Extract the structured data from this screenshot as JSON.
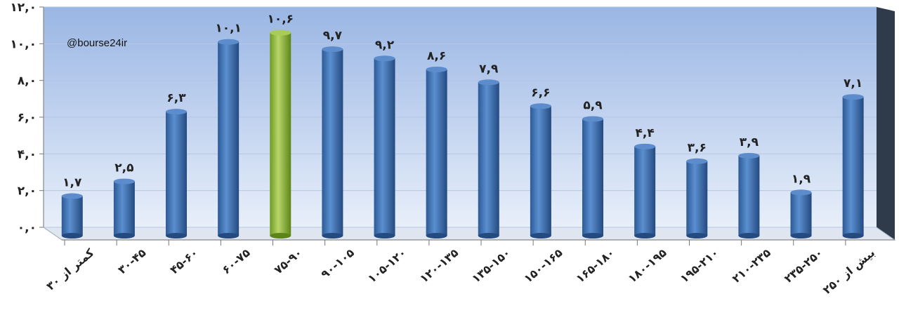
{
  "watermark": "@bourse24ir",
  "chart_data": {
    "type": "bar",
    "categories": [
      "کمتر از ۳۰",
      "۳۰-۴۵",
      "۴۵-۶۰",
      "۶۰-۷۵",
      "۷۵-۹۰",
      "۹۰-۱۰۵",
      "۱۰۵-۱۲۰",
      "۱۲۰-۱۳۵",
      "۱۳۵-۱۵۰",
      "۱۵۰-۱۶۵",
      "۱۶۵-۱۸۰",
      "۱۸۰-۱۹۵",
      "۱۹۵-۲۱۰",
      "۲۱۰-۲۳۵",
      "۲۳۵-۲۵۰",
      "بیش از ۲۵۰"
    ],
    "values": [
      1.7,
      2.5,
      6.3,
      10.1,
      10.6,
      9.7,
      9.2,
      8.6,
      7.9,
      6.6,
      5.9,
      4.4,
      3.6,
      3.9,
      1.9,
      7.1
    ],
    "data_labels": [
      "۱,۷",
      "۲,۵",
      "۶,۳",
      "۱۰,۱",
      "۱۰,۶",
      "۹,۷",
      "۹,۲",
      "۸,۶",
      "۷,۹",
      "۶,۶",
      "۵,۹",
      "۴,۴",
      "۳,۶",
      "۳,۹",
      "۱,۹",
      "۷,۱"
    ],
    "highlight_index": 4,
    "ylim": [
      0,
      12
    ],
    "yticks": [
      0,
      2,
      4,
      6,
      8,
      10,
      12
    ],
    "ytick_labels": [
      "۰,۰",
      "۲,۰",
      "۴,۰",
      "۶,۰",
      "۸,۰",
      "۱۰,۰",
      "۱۲,۰"
    ],
    "grid": true,
    "colors": {
      "bar": "#3f73b4",
      "highlight": "#8fba3a",
      "wall_top": "#9fbbe6",
      "wall_bottom": "#e6eefa",
      "side_wall": "#2f3a4a"
    }
  }
}
